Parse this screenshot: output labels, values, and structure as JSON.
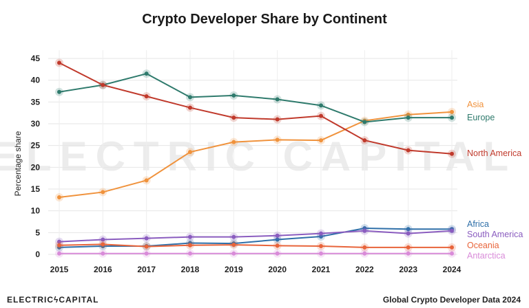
{
  "chart_data": {
    "type": "line",
    "title": "Crypto Developer Share by Continent",
    "ylabel": "Percentage share",
    "xlabel": "",
    "x": [
      2015,
      2016,
      2017,
      2018,
      2019,
      2020,
      2021,
      2022,
      2023,
      2024
    ],
    "ylim": [
      0,
      45
    ],
    "yticks": [
      0,
      5,
      10,
      15,
      20,
      25,
      30,
      35,
      40,
      45
    ],
    "grid": true,
    "legend": "inline-right",
    "series": [
      {
        "name": "Asia",
        "color": "#f0923c",
        "values": [
          13.1,
          14.3,
          17.0,
          23.5,
          25.8,
          26.3,
          26.2,
          30.7,
          32.1,
          32.7
        ]
      },
      {
        "name": "Europe",
        "color": "#2e7a6c",
        "values": [
          37.3,
          38.9,
          41.5,
          36.1,
          36.5,
          35.6,
          34.2,
          30.4,
          31.4,
          31.4
        ]
      },
      {
        "name": "North America",
        "color": "#c0392b",
        "values": [
          44.0,
          38.9,
          36.3,
          33.7,
          31.4,
          31.0,
          31.8,
          26.2,
          23.9,
          23.1
        ]
      },
      {
        "name": "Africa",
        "color": "#2e6fa8",
        "values": [
          1.6,
          1.9,
          1.9,
          2.6,
          2.5,
          3.4,
          4.1,
          6.0,
          5.8,
          5.8
        ]
      },
      {
        "name": "South America",
        "color": "#8a5cbf",
        "values": [
          2.9,
          3.4,
          3.7,
          4.0,
          4.0,
          4.3,
          4.8,
          5.4,
          4.8,
          5.4
        ]
      },
      {
        "name": "Oceania",
        "color": "#e8643a",
        "values": [
          2.1,
          2.3,
          1.8,
          2.1,
          2.2,
          2.0,
          1.9,
          1.6,
          1.6,
          1.6
        ]
      },
      {
        "name": "Antarctica",
        "color": "#d98bd9",
        "values": [
          0.2,
          0.2,
          0.2,
          0.2,
          0.2,
          0.2,
          0.2,
          0.2,
          0.2,
          0.2
        ]
      }
    ]
  },
  "watermark": "ELECTRIC CAPITAL",
  "footer": {
    "brand": "ELECTRICϟCAPITAL",
    "source": "Global Crypto Developer Data 2024"
  }
}
